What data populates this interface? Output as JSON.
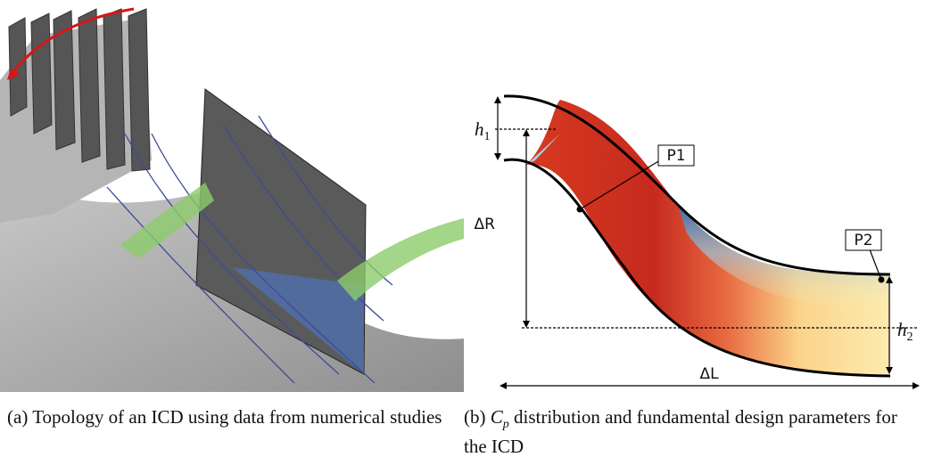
{
  "figure_a": {
    "caption": {
      "label": "(a)",
      "text": "Topology of an ICD using data from numerical studies"
    }
  },
  "figure_b": {
    "labels": {
      "h1": {
        "symbol": "h",
        "subscript": "1"
      },
      "delta_r": "ΔR",
      "p1": "P1",
      "p2": "P2",
      "h2": {
        "symbol": "h",
        "subscript": "2"
      },
      "delta_l": "ΔL"
    },
    "caption": {
      "label": "(b)",
      "symbol": "C",
      "subscript": "p",
      "text": "distribution and fundamental design parameters for the ICD"
    }
  }
}
